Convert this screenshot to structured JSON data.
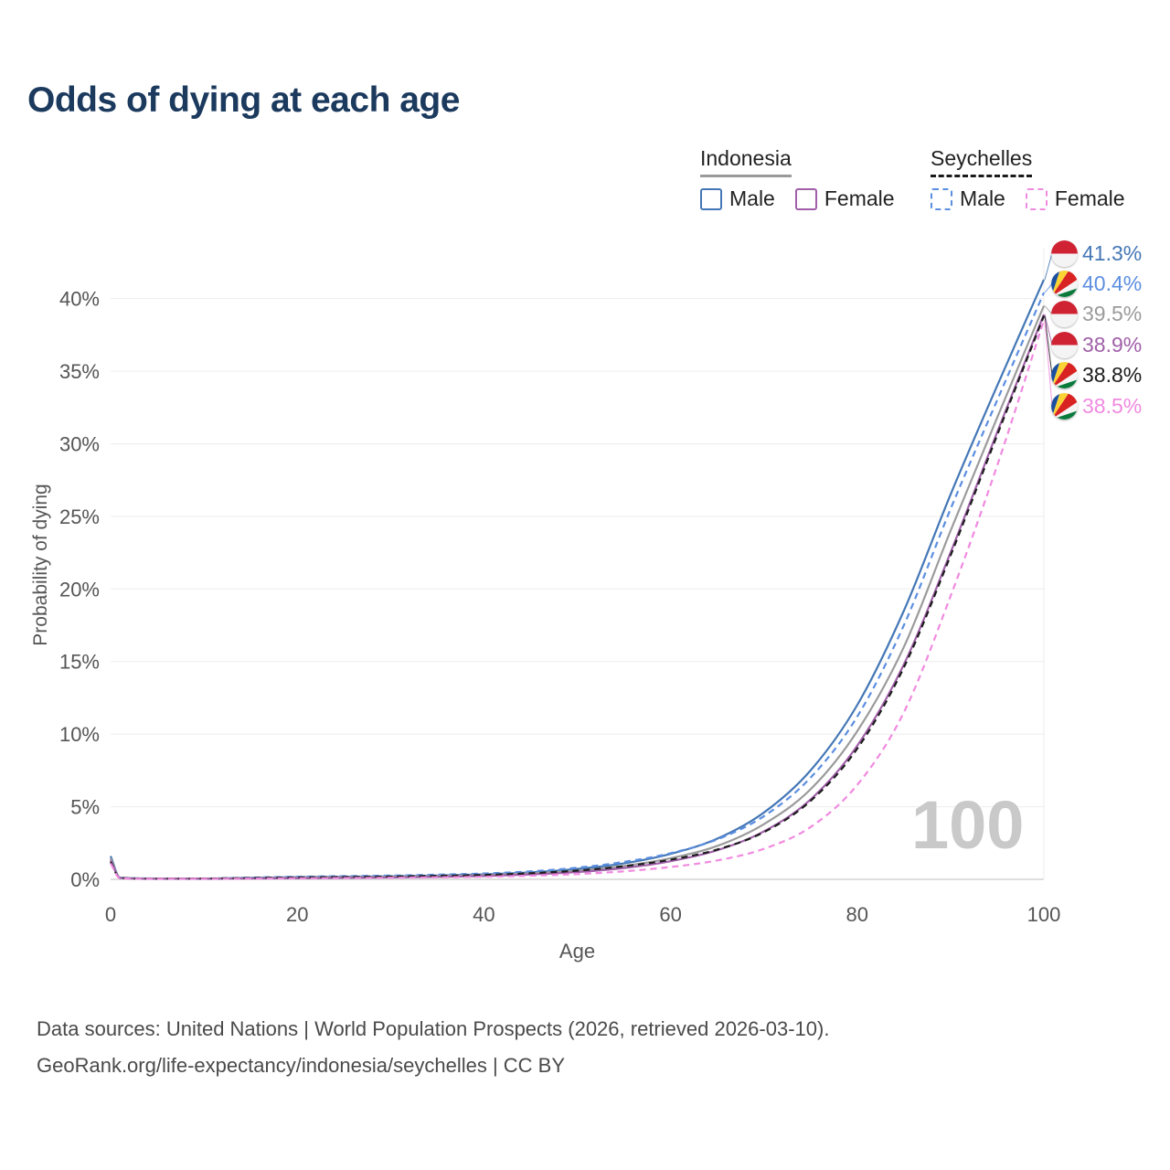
{
  "header": {
    "title": "Odds of dying at each age"
  },
  "legend": {
    "groups": [
      {
        "label": "Indonesia",
        "line_style": "solid",
        "underline_color": "#9a9a9a",
        "items": [
          {
            "label": "Male",
            "color": "#4477b6",
            "dashed": false
          },
          {
            "label": "Female",
            "color": "#a05fa8",
            "dashed": false
          }
        ]
      },
      {
        "label": "Seychelles",
        "line_style": "dashed",
        "underline_color": "#1a1a1a",
        "items": [
          {
            "label": "Male",
            "color": "#5c8ee0",
            "dashed": true
          },
          {
            "label": "Female",
            "color": "#f08ae0",
            "dashed": true
          }
        ]
      }
    ]
  },
  "chart_data": {
    "type": "line",
    "title": "Odds of dying at each age",
    "xlabel": "Age",
    "ylabel": "Probability of dying",
    "xlim": [
      0,
      100
    ],
    "ylim": [
      0,
      43.5
    ],
    "xticks": [
      0,
      20,
      40,
      60,
      80,
      100
    ],
    "yticks": [
      0,
      5,
      10,
      15,
      20,
      25,
      30,
      35,
      40
    ],
    "ytick_suffix": "%",
    "grid": "horizontal",
    "legend_position": "top-right",
    "hover_age_watermark": "100",
    "x": [
      0,
      1,
      5,
      10,
      15,
      20,
      25,
      30,
      35,
      40,
      45,
      50,
      55,
      60,
      65,
      70,
      75,
      80,
      85,
      90,
      95,
      100
    ],
    "series": [
      {
        "name": "Indonesia Male",
        "country": "Indonesia",
        "sex": "Male",
        "dashed": false,
        "color": "#4477b6",
        "end_label": "41.3%",
        "values": [
          1.6,
          0.12,
          0.06,
          0.06,
          0.1,
          0.15,
          0.18,
          0.21,
          0.26,
          0.34,
          0.48,
          0.72,
          1.1,
          1.75,
          2.8,
          4.6,
          7.5,
          12.0,
          18.5,
          26.5,
          34.0,
          41.3
        ]
      },
      {
        "name": "Seychelles Male",
        "country": "Seychelles",
        "sex": "Male",
        "dashed": true,
        "color": "#5c8ee0",
        "end_label": "40.4%",
        "values": [
          1.4,
          0.1,
          0.05,
          0.05,
          0.12,
          0.18,
          0.22,
          0.26,
          0.32,
          0.4,
          0.55,
          0.8,
          1.2,
          1.8,
          2.75,
          4.35,
          7.0,
          11.2,
          17.5,
          25.5,
          33.0,
          40.4
        ]
      },
      {
        "name": "Indonesia Both sexes",
        "country": "Indonesia",
        "sex": "Both",
        "dashed": false,
        "color": "#9b9b9b",
        "end_label": "39.5%",
        "values": [
          1.45,
          0.11,
          0.05,
          0.05,
          0.08,
          0.12,
          0.15,
          0.18,
          0.22,
          0.29,
          0.41,
          0.6,
          0.92,
          1.45,
          2.3,
          3.8,
          6.2,
          10.2,
          16.0,
          24.0,
          31.8,
          39.5
        ]
      },
      {
        "name": "Indonesia Female",
        "country": "Indonesia",
        "sex": "Female",
        "dashed": false,
        "color": "#a05fa8",
        "end_label": "38.9%",
        "values": [
          1.3,
          0.09,
          0.04,
          0.04,
          0.06,
          0.08,
          0.1,
          0.13,
          0.17,
          0.23,
          0.34,
          0.5,
          0.78,
          1.25,
          2.0,
          3.3,
          5.5,
          9.2,
          14.8,
          22.5,
          30.8,
          38.9
        ]
      },
      {
        "name": "Seychelles Both sexes",
        "country": "Seychelles",
        "sex": "Both",
        "dashed": true,
        "color": "#1c1c1c",
        "end_label": "38.8%",
        "values": [
          1.2,
          0.09,
          0.04,
          0.05,
          0.09,
          0.13,
          0.16,
          0.19,
          0.24,
          0.3,
          0.42,
          0.6,
          0.9,
          1.35,
          2.05,
          3.25,
          5.4,
          9.0,
          14.6,
          22.3,
          30.6,
          38.8
        ]
      },
      {
        "name": "Seychelles Female",
        "country": "Seychelles",
        "sex": "Female",
        "dashed": true,
        "color": "#f08ae0",
        "end_label": "38.5%",
        "values": [
          1.1,
          0.08,
          0.03,
          0.03,
          0.05,
          0.07,
          0.09,
          0.11,
          0.14,
          0.18,
          0.25,
          0.36,
          0.55,
          0.85,
          1.3,
          2.1,
          3.6,
          6.5,
          11.5,
          19.5,
          28.5,
          38.5
        ]
      }
    ]
  },
  "watermark": "100",
  "footer": {
    "line1": "Data sources: United Nations | World Population Prospects (2026, retrieved 2026-03-10).",
    "line2": "GeoRank.org/life-expectancy/indonesia/seychelles | CC BY"
  }
}
